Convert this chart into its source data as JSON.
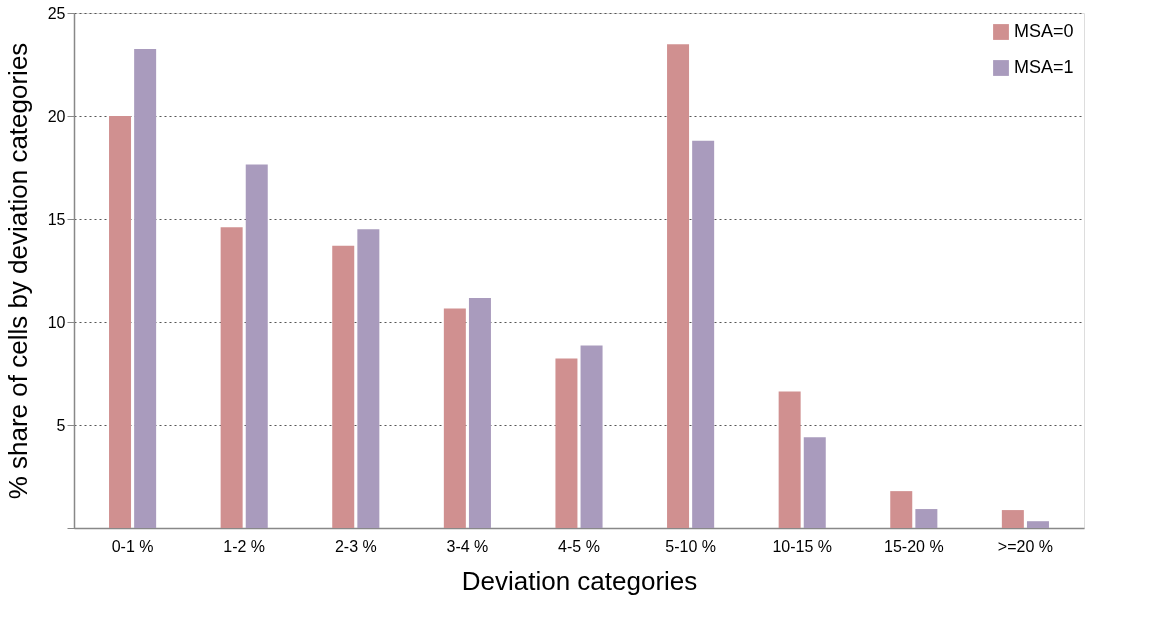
{
  "chart_data": {
    "type": "bar",
    "xlabel": "Deviation categories",
    "ylabel": "% share of cells by deviation categories",
    "categories": [
      "0-1 %",
      "1-2 %",
      "2-3 %",
      "3-4 %",
      "4-5 %",
      "5-10 %",
      "10-15 %",
      "15-20 %",
      ">=20 %"
    ],
    "series": [
      {
        "name": "MSA=0",
        "color": "#d09090",
        "values": [
          20.0,
          14.6,
          13.7,
          10.65,
          8.23,
          23.48,
          6.63,
          1.79,
          0.87
        ]
      },
      {
        "name": "MSA=1",
        "color": "#a99bbd",
        "values": [
          23.25,
          17.65,
          14.5,
          11.17,
          8.86,
          18.8,
          4.4,
          0.92,
          0.33
        ]
      }
    ],
    "ylim": [
      0,
      25
    ],
    "yticks": [
      {
        "value": 0,
        "label": null
      },
      5,
      10,
      15,
      20,
      25
    ],
    "grid": "y",
    "legend": "top right"
  }
}
